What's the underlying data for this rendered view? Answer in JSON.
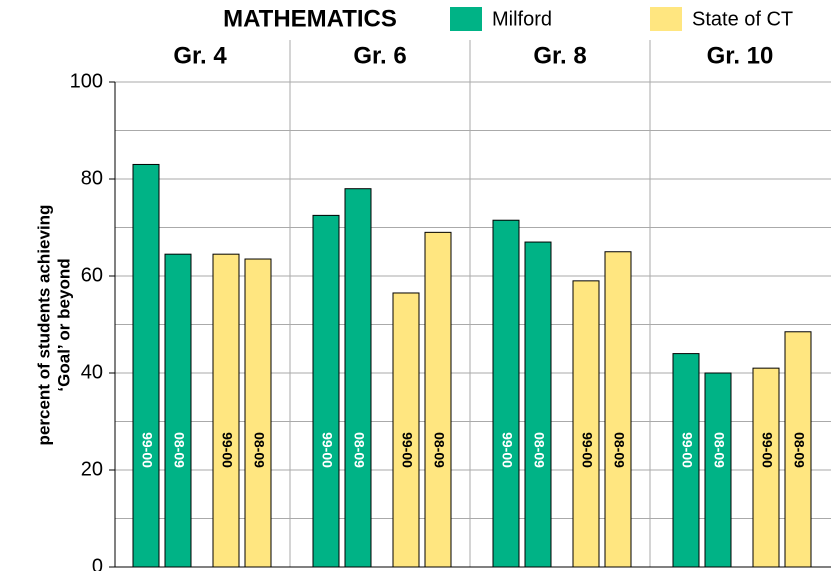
{
  "chart_data": {
    "type": "grouped_bar",
    "title": "MATHEMATICS",
    "y_label": [
      "percent of students achieving",
      "‘Goal’ or beyond"
    ],
    "categories": [
      "Gr. 4",
      "Gr. 6",
      "Gr. 8",
      "Gr. 10"
    ],
    "years": [
      "99-00",
      "08-09"
    ],
    "series": [
      {
        "name": "Milford",
        "color": "#00b386",
        "values": [
          [
            83,
            64.5
          ],
          [
            72.5,
            78
          ],
          [
            71.5,
            67
          ],
          [
            44,
            40
          ]
        ]
      },
      {
        "name": "State of CT",
        "color": "#ffe680",
        "values": [
          [
            64.5,
            63.5
          ],
          [
            56.5,
            69
          ],
          [
            59,
            65
          ],
          [
            41,
            48.5
          ]
        ]
      }
    ],
    "ylim": [
      0,
      100
    ],
    "yticks": [
      0,
      20,
      40,
      60,
      80,
      100
    ],
    "minor_yticks": [
      10,
      30,
      50,
      70,
      90
    ],
    "grid": true
  }
}
